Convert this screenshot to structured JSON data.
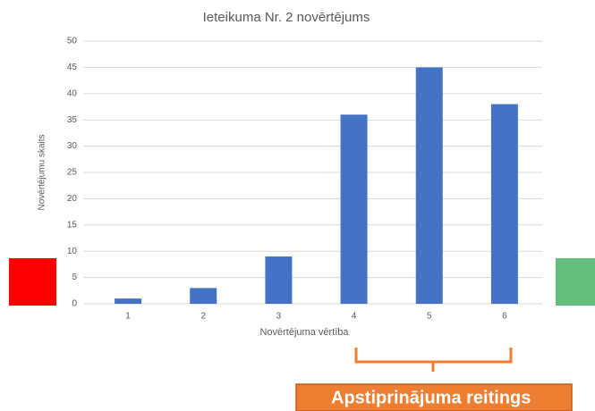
{
  "chart_data": {
    "type": "bar",
    "title": "Ieteikuma Nr. 2 novērtējums",
    "x_label": "Novērtējuma vērtība",
    "y_label": "Novērtējumu skaits",
    "categories": [
      "1",
      "2",
      "3",
      "4",
      "5",
      "6"
    ],
    "values": [
      1,
      3,
      9,
      36,
      45,
      38
    ],
    "color": "#4472c4",
    "ylim": [
      0,
      50
    ],
    "yticks": [
      0,
      5,
      10,
      15,
      20,
      25,
      30,
      35,
      40,
      45,
      50
    ],
    "grid": true,
    "annotation": "Apstiprinājuma reitings"
  }
}
